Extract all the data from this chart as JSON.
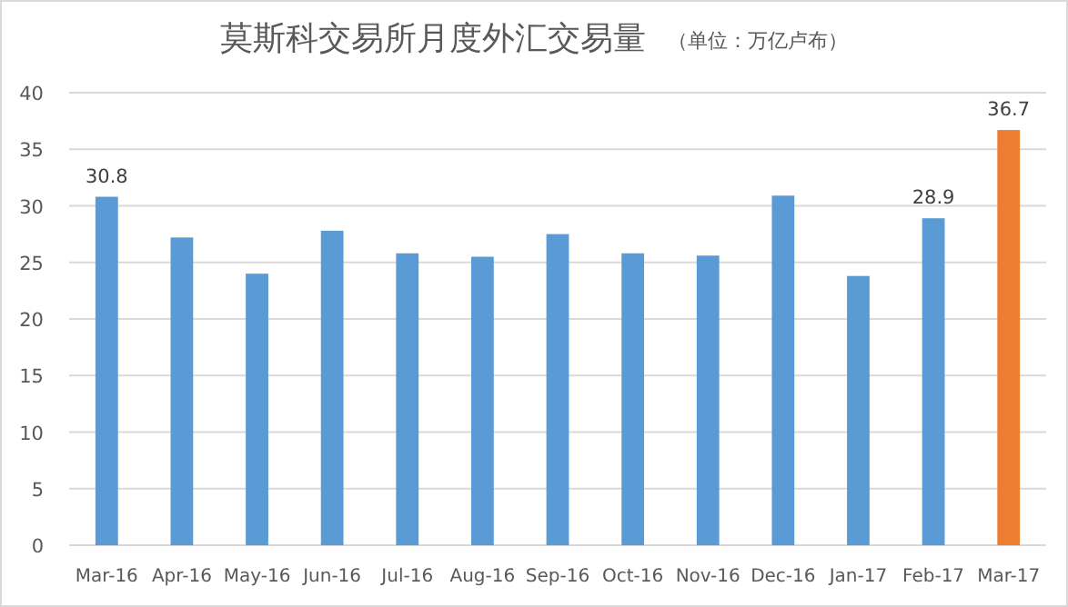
{
  "chart_data": {
    "type": "bar",
    "title": "莫斯科交易所月度外汇交易量",
    "subtitle": "（单位：万亿卢布）",
    "categories": [
      "Mar-16",
      "Apr-16",
      "May-16",
      "Jun-16",
      "Jul-16",
      "Aug-16",
      "Sep-16",
      "Oct-16",
      "Nov-16",
      "Dec-16",
      "Jan-17",
      "Feb-17",
      "Mar-17"
    ],
    "values": [
      30.8,
      27.2,
      24.0,
      27.8,
      25.8,
      25.5,
      27.5,
      25.8,
      25.6,
      30.9,
      23.8,
      28.9,
      36.7
    ],
    "colors": [
      "#5b9bd5",
      "#5b9bd5",
      "#5b9bd5",
      "#5b9bd5",
      "#5b9bd5",
      "#5b9bd5",
      "#5b9bd5",
      "#5b9bd5",
      "#5b9bd5",
      "#5b9bd5",
      "#5b9bd5",
      "#5b9bd5",
      "#ed7d31"
    ],
    "value_labels": [
      "30.8",
      null,
      null,
      null,
      null,
      null,
      null,
      null,
      null,
      null,
      null,
      "28.9",
      "36.7"
    ],
    "ylim": [
      0,
      40
    ],
    "yticks": [
      0,
      5,
      10,
      15,
      20,
      25,
      30,
      35,
      40
    ],
    "grid": "y"
  }
}
